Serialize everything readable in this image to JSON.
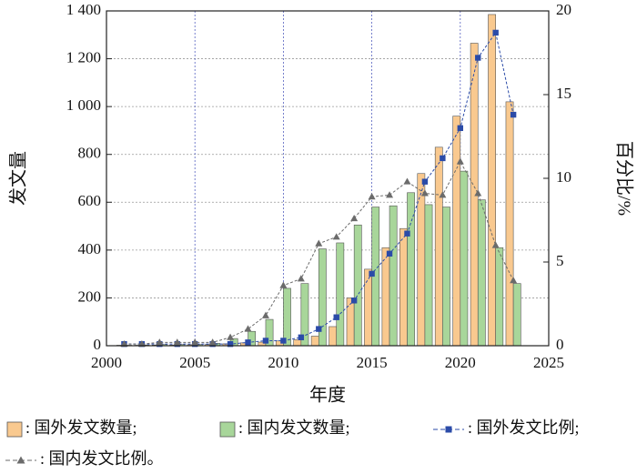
{
  "chart_data": {
    "type": "bar",
    "xlabel": "年度",
    "ylabel": "发文量",
    "y2label": "百分比/%",
    "x": [
      2001,
      2002,
      2003,
      2004,
      2005,
      2006,
      2007,
      2008,
      2009,
      2010,
      2011,
      2012,
      2013,
      2014,
      2015,
      2016,
      2017,
      2018,
      2019,
      2020,
      2021,
      2022,
      2023
    ],
    "xlim": [
      2000,
      2025
    ],
    "xticks": [
      2000,
      2005,
      2010,
      2015,
      2020,
      2025
    ],
    "ylim": [
      0,
      1400
    ],
    "yticks": [
      0,
      200,
      400,
      600,
      800,
      {
        "value": 1000,
        "label": "1 000"
      },
      {
        "value": 1200,
        "label": "1 200"
      },
      {
        "value": 1400,
        "label": "1 400"
      }
    ],
    "y2lim": [
      0,
      20
    ],
    "y2ticks": [
      0,
      5,
      10,
      15,
      20
    ],
    "grid": true,
    "series": [
      {
        "name": ": 国外发文数量;",
        "type": "bar",
        "color": "#f9c98f",
        "values": [
          2,
          2,
          3,
          3,
          4,
          5,
          8,
          12,
          15,
          20,
          25,
          40,
          80,
          200,
          320,
          410,
          490,
          720,
          830,
          960,
          1265,
          1385,
          1020
        ]
      },
      {
        "name": ": 国内发文数量;",
        "type": "bar",
        "color": "#a8d69a",
        "values": [
          2,
          3,
          5,
          5,
          5,
          10,
          30,
          60,
          110,
          240,
          260,
          405,
          430,
          505,
          580,
          585,
          640,
          590,
          580,
          730,
          610,
          410,
          260
        ]
      },
      {
        "name": ": 国外发文比例;",
        "type": "line",
        "axis": "y2",
        "color": "#2b4ba8",
        "marker": "square",
        "values": [
          0.1,
          0.1,
          0.1,
          0.1,
          0.1,
          0.1,
          0.1,
          0.2,
          0.3,
          0.3,
          0.5,
          1.0,
          1.7,
          2.7,
          4.3,
          5.5,
          6.7,
          9.8,
          11.2,
          13.0,
          17.2,
          18.7,
          13.8
        ]
      },
      {
        "name": ": 国内发文比例。",
        "type": "line",
        "axis": "y2",
        "color": "#6b6b6b",
        "marker": "triangle",
        "values": [
          0.1,
          0.1,
          0.2,
          0.2,
          0.2,
          0.2,
          0.5,
          1.0,
          1.8,
          3.6,
          4.0,
          6.1,
          6.5,
          7.6,
          8.9,
          9.0,
          9.8,
          9.1,
          9.0,
          11.0,
          9.1,
          6.0,
          3.9
        ]
      }
    ]
  }
}
